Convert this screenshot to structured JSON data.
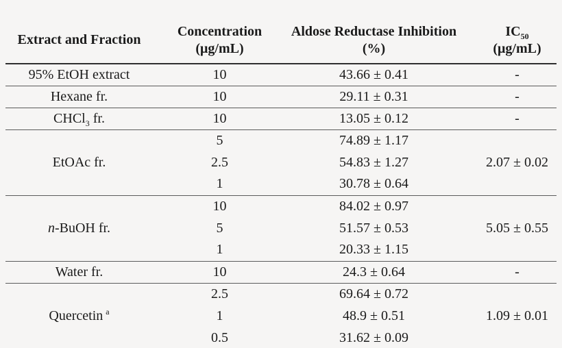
{
  "colors": {
    "bg": "#f6f5f4",
    "ink": "#1a1a1a",
    "rule": "#5a5a5a",
    "rule-heavy": "#2e2e2e"
  },
  "table": {
    "headers": {
      "extract": "Extract and Fraction",
      "concentration_line1": "Concentration",
      "concentration_line2": "(μg/mL)",
      "inhibition_line1": "Aldose Reductase Inhibition",
      "inhibition_line2": "(%)",
      "ic50_base": "IC",
      "ic50_sub": "50",
      "ic50_line2": "(μg/mL)"
    },
    "rows": {
      "etoh": {
        "name": "95% EtOH extract",
        "conc": "10",
        "inhibition": "43.66 ± 0.41",
        "ic50": "-"
      },
      "hexane": {
        "name": "Hexane fr.",
        "conc": "10",
        "inhibition": "29.11 ± 0.31",
        "ic50": "-"
      },
      "chcl3": {
        "name_base": "CHCl",
        "name_sub": "3",
        "name_suffix": " fr.",
        "conc": "10",
        "inhibition": "13.05 ± 0.12",
        "ic50": "-"
      },
      "etoac": {
        "name": "EtOAc fr.",
        "ic50": "2.07 ± 0.02",
        "sub": [
          {
            "conc": "5",
            "inhibition": "74.89 ± 1.17"
          },
          {
            "conc": "2.5",
            "inhibition": "54.83 ± 1.27"
          },
          {
            "conc": "1",
            "inhibition": "30.78 ± 0.64"
          }
        ]
      },
      "nbuoh": {
        "name_italic": "n",
        "name_rest": "-BuOH fr.",
        "ic50": "5.05 ± 0.55",
        "sub": [
          {
            "conc": "10",
            "inhibition": "84.02 ± 0.97"
          },
          {
            "conc": "5",
            "inhibition": "51.57 ± 0.53"
          },
          {
            "conc": "1",
            "inhibition": "20.33 ± 1.15"
          }
        ]
      },
      "water": {
        "name": "Water fr.",
        "conc": "10",
        "inhibition": "24.3 ± 0.64",
        "ic50": "-"
      },
      "quercetin": {
        "name": "Quercetin",
        "name_sup": "a",
        "ic50": "1.09 ± 0.01",
        "sub": [
          {
            "conc": "2.5",
            "inhibition": "69.64 ± 0.72"
          },
          {
            "conc": "1",
            "inhibition": "48.9 ± 0.51"
          },
          {
            "conc": "0.5",
            "inhibition": "31.62 ± 0.09"
          }
        ]
      }
    }
  }
}
